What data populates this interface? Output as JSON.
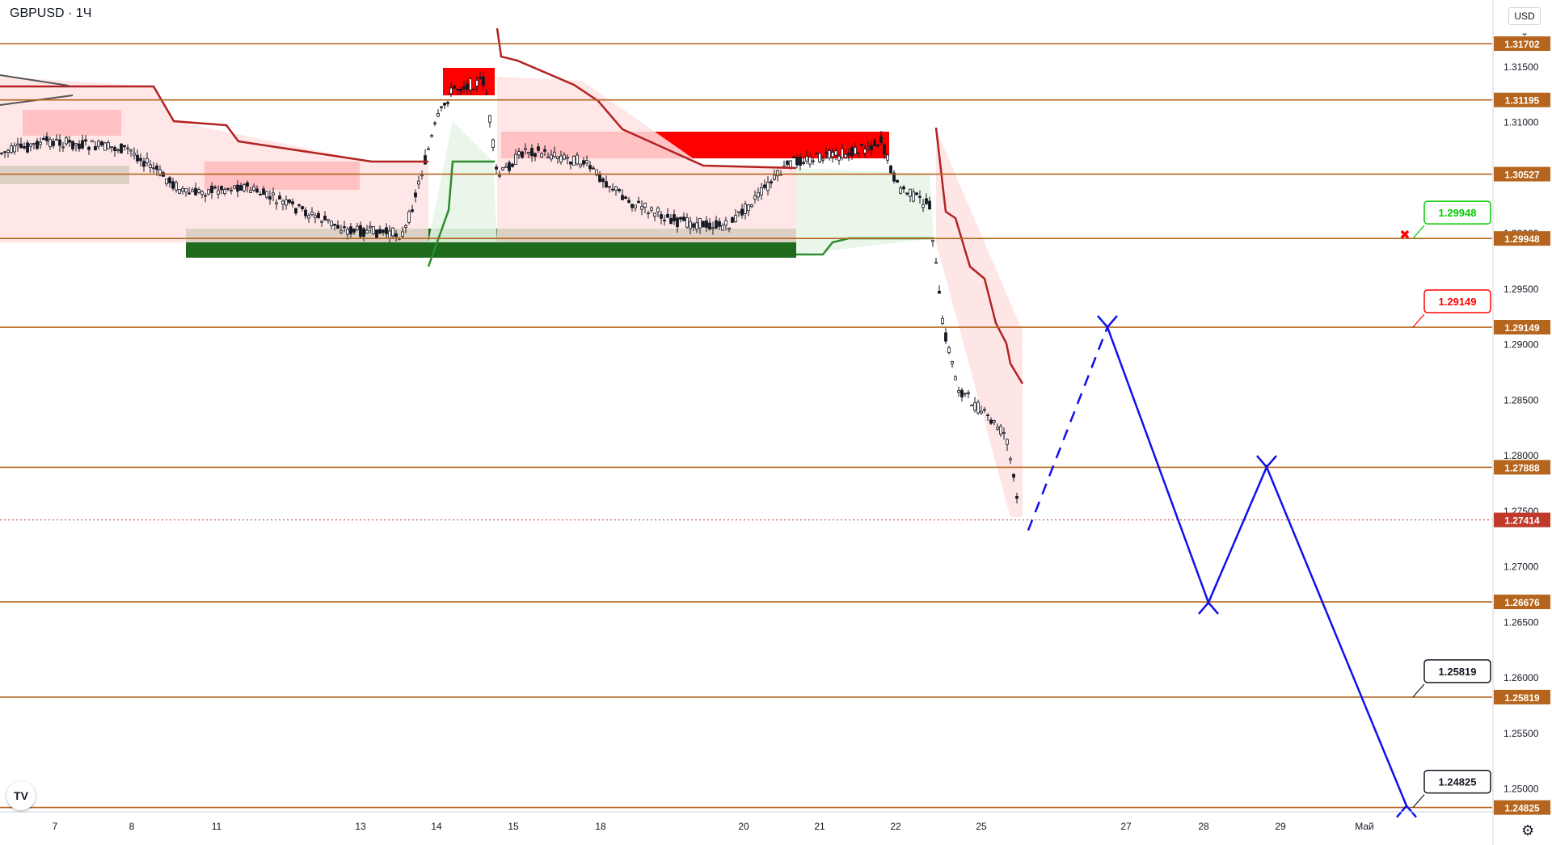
{
  "header": {
    "symbol": "GBPUSD",
    "separator": "·",
    "interval": "1Ч",
    "currency": "USD",
    "currency_caret": "⌄"
  },
  "price_axis": {
    "ticks": [
      "1.31500",
      "1.31000",
      "1.30500",
      "1.30000",
      "1.29500",
      "1.29000",
      "1.28500",
      "1.28000",
      "1.27500",
      "1.27000",
      "1.26500",
      "1.26000",
      "1.25500",
      "1.25000"
    ]
  },
  "time_axis": {
    "labels": [
      "7",
      "8",
      "11",
      "13",
      "14",
      "15",
      "18",
      "20",
      "21",
      "22",
      "25",
      "27",
      "28",
      "29",
      "Май"
    ]
  },
  "levels": [
    {
      "value": "1.31702",
      "price": 1.31702
    },
    {
      "value": "1.31195",
      "price": 1.31195
    },
    {
      "value": "1.30527",
      "price": 1.30527
    },
    {
      "value": "1.29948",
      "price": 1.29948
    },
    {
      "value": "1.29149",
      "price": 1.29149
    },
    {
      "value": "1.27888",
      "price": 1.27888
    },
    {
      "value": "1.26676",
      "price": 1.26676
    },
    {
      "value": "1.25819",
      "price": 1.25819
    },
    {
      "value": "1.24825",
      "price": 1.24825
    }
  ],
  "current_price": {
    "value": "1.27414",
    "price": 1.27414
  },
  "callouts": [
    {
      "text": "1.29948",
      "price": 1.29948,
      "style": "green"
    },
    {
      "text": "1.29149",
      "price": 1.29149,
      "style": "red"
    },
    {
      "text": "1.25819",
      "price": 1.25819,
      "style": "black"
    },
    {
      "text": "1.24825",
      "price": 1.24825,
      "style": "black"
    }
  ],
  "projected_path": [
    {
      "date": "25",
      "price": 1.2732
    },
    {
      "date": "26",
      "price": 1.2915
    },
    {
      "date": "27",
      "price": 1.2667
    },
    {
      "date": "29",
      "price": 1.2789
    },
    {
      "date": "30",
      "price": 1.2484
    }
  ],
  "colors": {
    "level_line": "#b5651d",
    "level_label_bg": "#b5651d",
    "current_label_bg": "#c0392b",
    "red_zone": "#ff0000",
    "green_zone": "#1e6b1e",
    "path": "#1010ee",
    "supertrend_down": "#b22222",
    "supertrend_up": "#2e8b2e",
    "candle_up": "#ffffff",
    "candle_down": "#131722",
    "callout_green": "#00cc00",
    "callout_red": "#ff0000"
  },
  "icons": {
    "logo": "tradingview-logo-icon",
    "settings": "gear-icon",
    "alert_marker": "cross-icon"
  },
  "footer": {
    "logo_text": "TV",
    "settings_glyph": "⚙",
    "cross_glyph": "✖"
  }
}
